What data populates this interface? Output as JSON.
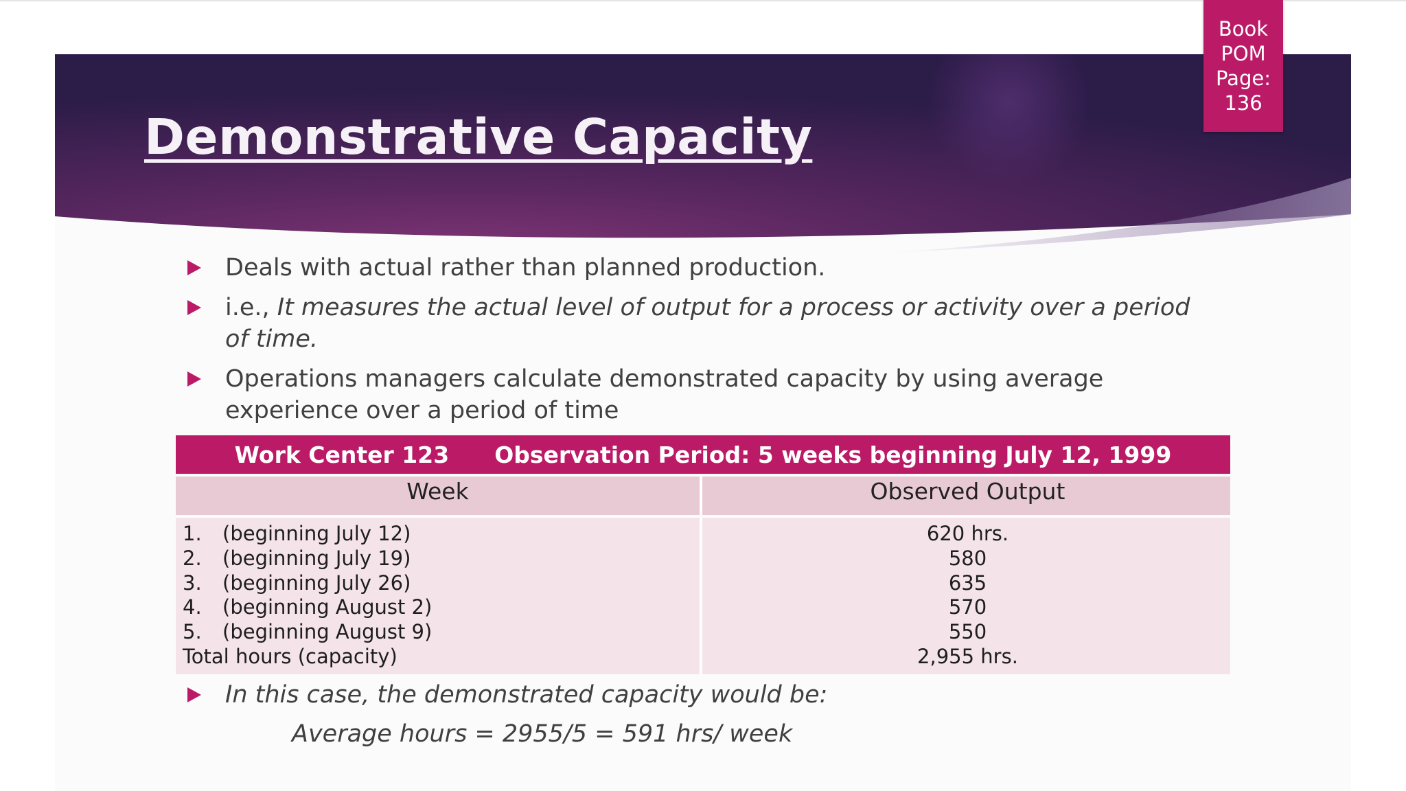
{
  "slide": {
    "title": "Demonstrative Capacity",
    "page_tab": {
      "line1": "Book",
      "line2": "POM",
      "line3": "Page:",
      "line4": "136"
    },
    "bullets": [
      {
        "prefix": "",
        "text": "Deals with actual rather than planned production."
      },
      {
        "prefix": "i.e., ",
        "text": "It measures the actual level of output for a process or activity over a period of time."
      },
      {
        "prefix": "",
        "text": "Operations managers calculate demonstrated capacity by using average experience over a period of time"
      }
    ],
    "table": {
      "header_left": "Work Center 123",
      "header_right": "Observation Period: 5 weeks beginning July 12, 1999",
      "col_week": "Week",
      "col_output": "Observed Output",
      "rows": [
        {
          "num": "1.",
          "week": "(beginning July 12)",
          "output": "620 hrs."
        },
        {
          "num": "2.",
          "week": "(beginning July 19)",
          "output": "580"
        },
        {
          "num": "3.",
          "week": "(beginning July 26)",
          "output": "635"
        },
        {
          "num": "4.",
          "week": "(beginning August 2)",
          "output": "570"
        },
        {
          "num": "5.",
          "week": "(beginning August 9)",
          "output": "550"
        }
      ],
      "total_label": "Total hours (capacity)",
      "total_value": "2,955 hrs."
    },
    "conclusion": "In this case, the demonstrated capacity would be:",
    "average": "Average hours = 2955/5 = 591 hrs/ week",
    "colors": {
      "accent": "#bb1a66",
      "banner_dark": "#2c1c48",
      "banner_light": "#7a3070",
      "text": "#404040"
    }
  }
}
